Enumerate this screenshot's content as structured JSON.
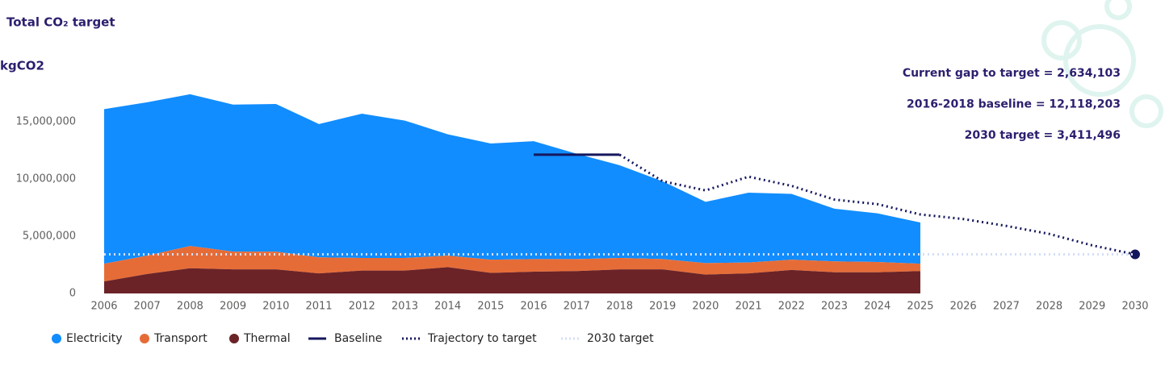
{
  "chart_data": {
    "type": "stacked-area",
    "title": "Total CO₂ target",
    "y_label": "kgCO2",
    "categories": [
      "2006",
      "2007",
      "2008",
      "2009",
      "2010",
      "2011",
      "2012",
      "2013",
      "2014",
      "2015",
      "2016",
      "2017",
      "2018",
      "2019",
      "2020",
      "2021",
      "2022",
      "2023",
      "2024",
      "2025",
      "2026",
      "2027",
      "2028",
      "2029",
      "2030"
    ],
    "ylim": [
      0,
      18000000
    ],
    "yticks": [
      0,
      {
        "value": 5000000,
        "label": "5,000,000"
      },
      {
        "value": 10000000,
        "label": "10,000,000"
      },
      {
        "value": 15000000,
        "label": "15,000,000"
      }
    ],
    "grid": false,
    "legend": "bottom-left",
    "series": [
      {
        "name": "Electricity",
        "color": "#118dff",
        "kind": "area",
        "values": [
          13500000,
          13400000,
          13250000,
          12850000,
          12900000,
          11650000,
          12600000,
          12000000,
          10600000,
          10150000,
          10300000,
          9200000,
          8100000,
          6800000,
          5350000,
          6100000,
          5750000,
          4600000,
          4250000,
          3600000,
          null,
          null,
          null,
          null,
          null
        ]
      },
      {
        "name": "Transport",
        "color": "#e66c37",
        "kind": "area",
        "values": [
          1550000,
          1600000,
          1950000,
          1550000,
          1550000,
          1400000,
          1100000,
          1100000,
          1000000,
          1150000,
          1100000,
          1050000,
          1000000,
          900000,
          1000000,
          950000,
          900000,
          950000,
          900000,
          650000,
          null,
          null,
          null,
          null,
          null
        ]
      },
      {
        "name": "Thermal",
        "color": "#6b2327",
        "kind": "area",
        "values": [
          1050000,
          1700000,
          2200000,
          2100000,
          2100000,
          1750000,
          2000000,
          2000000,
          2300000,
          1800000,
          1900000,
          1950000,
          2100000,
          2100000,
          1650000,
          1750000,
          2050000,
          1850000,
          1850000,
          1950000,
          null,
          null,
          null,
          null,
          null
        ]
      },
      {
        "name": "Baseline",
        "color": "#15175e",
        "kind": "line",
        "dash": "solid",
        "values": [
          null,
          null,
          null,
          null,
          null,
          null,
          null,
          null,
          null,
          null,
          12118203,
          12118203,
          12118203,
          null,
          null,
          null,
          null,
          null,
          null,
          null,
          null,
          null,
          null,
          null,
          null
        ]
      },
      {
        "name": "Trajectory to target",
        "color": "#15175e",
        "kind": "line",
        "dash": "dotted",
        "end_marker": true,
        "values": [
          null,
          null,
          null,
          null,
          null,
          null,
          null,
          null,
          null,
          null,
          null,
          null,
          12118203,
          9800000,
          9000000,
          10200000,
          9400000,
          8200000,
          7800000,
          6900000,
          6500000,
          5900000,
          5200000,
          4200000,
          3411496
        ]
      },
      {
        "name": "2030 target",
        "color": "#d3def7",
        "kind": "line",
        "dash": "dotted",
        "values": [
          3411496,
          3411496,
          3411496,
          3411496,
          3411496,
          3411496,
          3411496,
          3411496,
          3411496,
          3411496,
          3411496,
          3411496,
          3411496,
          3411496,
          3411496,
          3411496,
          3411496,
          3411496,
          3411496,
          3411496,
          3411496,
          3411496,
          3411496,
          3411496,
          3411496
        ]
      }
    ],
    "annotations": [
      "Current gap to target = 2,634,103",
      "2016-2018 baseline = 12,118,203",
      "2030 target = 3,411,496"
    ]
  }
}
